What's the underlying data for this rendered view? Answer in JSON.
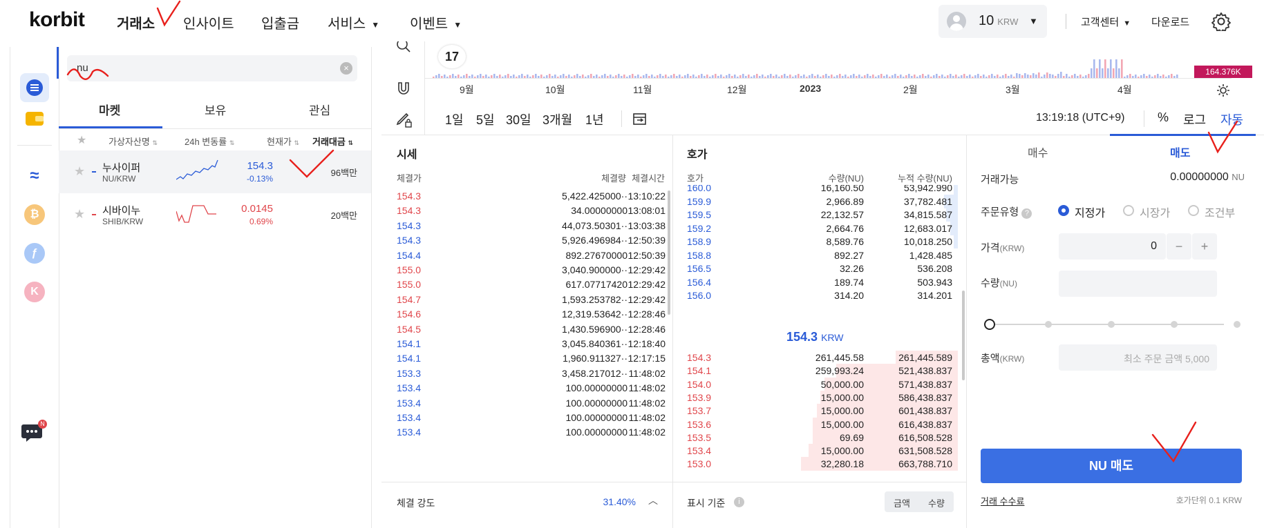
{
  "header": {
    "logo": "korbit",
    "nav": [
      {
        "label": "거래소"
      },
      {
        "label": "인사이트"
      },
      {
        "label": "입출금"
      },
      {
        "label": "서비스"
      },
      {
        "label": "이벤트"
      }
    ],
    "balance": {
      "amount": "10",
      "unit": "KRW"
    },
    "support": "고객센터",
    "download": "다운로드"
  },
  "market": {
    "search_value": "nu",
    "tabs": [
      "마켓",
      "보유",
      "관심"
    ],
    "columns": [
      "가상자산명",
      "24h 변동률",
      "현재가",
      "거래대금"
    ],
    "rows": [
      {
        "name": "누사이퍼",
        "pair": "NU/KRW",
        "price": "154.3",
        "change": "-0.13%",
        "volume": "96백만"
      },
      {
        "name": "시바이누",
        "pair": "SHIB/KRW",
        "price": "0.0145",
        "change": "0.69%",
        "volume": "20백만"
      }
    ]
  },
  "chart": {
    "months": [
      "9월",
      "10월",
      "11월",
      "12월",
      "2023",
      "2월",
      "3월",
      "4월"
    ],
    "price_tag": "164.376K",
    "periods": [
      "1일",
      "5일",
      "30일",
      "3개월",
      "1년"
    ],
    "time": "13:19:18 (UTC+9)",
    "scale": [
      "%",
      "로그",
      "자동"
    ]
  },
  "trades": {
    "title": "시세",
    "columns": [
      "체결가",
      "체결량",
      "체결시간"
    ],
    "rows": [
      {
        "price": "154.3",
        "qty": "5,422.425000··",
        "time": "13:10:22",
        "side": "sell"
      },
      {
        "price": "154.3",
        "qty": "34.00000000",
        "time": "13:08:01",
        "side": "sell"
      },
      {
        "price": "154.3",
        "qty": "44,073.50301··",
        "time": "13:03:38",
        "side": "buy"
      },
      {
        "price": "154.3",
        "qty": "5,926.496984··",
        "time": "12:50:39",
        "side": "buy"
      },
      {
        "price": "154.4",
        "qty": "892.27670000",
        "time": "12:50:39",
        "side": "buy"
      },
      {
        "price": "155.0",
        "qty": "3,040.900000··",
        "time": "12:29:42",
        "side": "sell"
      },
      {
        "price": "155.0",
        "qty": "617.07717420",
        "time": "12:29:42",
        "side": "sell"
      },
      {
        "price": "154.7",
        "qty": "1,593.253782··",
        "time": "12:29:42",
        "side": "sell"
      },
      {
        "price": "154.6",
        "qty": "12,319.53642··",
        "time": "12:28:46",
        "side": "sell"
      },
      {
        "price": "154.5",
        "qty": "1,430.596900··",
        "time": "12:28:46",
        "side": "sell"
      },
      {
        "price": "154.1",
        "qty": "3,045.840361··",
        "time": "12:18:40",
        "side": "buy"
      },
      {
        "price": "154.1",
        "qty": "1,960.911327··",
        "time": "12:17:15",
        "side": "buy"
      },
      {
        "price": "153.3",
        "qty": "3,458.217012··",
        "time": "11:48:02",
        "side": "buy"
      },
      {
        "price": "153.4",
        "qty": "100.00000000",
        "time": "11:48:02",
        "side": "buy"
      },
      {
        "price": "153.4",
        "qty": "100.00000000",
        "time": "11:48:02",
        "side": "buy"
      },
      {
        "price": "153.4",
        "qty": "100.00000000",
        "time": "11:48:02",
        "side": "buy"
      },
      {
        "price": "153.4",
        "qty": "100.00000000",
        "time": "11:48:02",
        "side": "buy"
      }
    ],
    "strength_label": "체결 강도",
    "strength_value": "31.40%"
  },
  "orderbook": {
    "title": "호가",
    "columns": [
      "호가",
      "수량(NU)",
      "누적 수량(NU)"
    ],
    "asks": [
      {
        "price": "160.0",
        "qty": "16,160.50",
        "cum": "53,942.990",
        "fill": 0.02
      },
      {
        "price": "159.9",
        "qty": "2,966.89",
        "cum": "37,782.481",
        "fill": 0.07
      },
      {
        "price": "159.5",
        "qty": "22,132.57",
        "cum": "34,815.587",
        "fill": 0.06
      },
      {
        "price": "159.2",
        "qty": "2,664.76",
        "cum": "12,683.017",
        "fill": 0.04
      },
      {
        "price": "158.9",
        "qty": "8,589.76",
        "cum": "10,018.250",
        "fill": 0.02
      },
      {
        "price": "158.8",
        "qty": "892.27",
        "cum": "1,428.485",
        "fill": 0.0
      },
      {
        "price": "156.5",
        "qty": "32.26",
        "cum": "536.208",
        "fill": 0.0
      },
      {
        "price": "156.4",
        "qty": "189.74",
        "cum": "503.943",
        "fill": 0.0
      },
      {
        "price": "156.0",
        "qty": "314.20",
        "cum": "314.201",
        "fill": 0.0
      }
    ],
    "current_price": "154.3",
    "current_unit": "KRW",
    "bids": [
      {
        "price": "154.3",
        "qty": "261,445.58",
        "cum": "261,445.589",
        "fill": 0.32
      },
      {
        "price": "154.1",
        "qty": "259,993.24",
        "cum": "521,438.837",
        "fill": 0.63
      },
      {
        "price": "154.0",
        "qty": "50,000.00",
        "cum": "571,438.837",
        "fill": 0.69
      },
      {
        "price": "153.9",
        "qty": "15,000.00",
        "cum": "586,438.837",
        "fill": 0.71
      },
      {
        "price": "153.7",
        "qty": "15,000.00",
        "cum": "601,438.837",
        "fill": 0.73
      },
      {
        "price": "153.6",
        "qty": "15,000.00",
        "cum": "616,438.837",
        "fill": 0.75
      },
      {
        "price": "153.5",
        "qty": "69.69",
        "cum": "616,508.528",
        "fill": 0.75
      },
      {
        "price": "153.4",
        "qty": "15,000.00",
        "cum": "631,508.528",
        "fill": 0.77
      },
      {
        "price": "153.0",
        "qty": "32,280.18",
        "cum": "663,788.710",
        "fill": 0.81
      }
    ],
    "display_label": "표시 기준",
    "toggle": [
      "금액",
      "수량"
    ]
  },
  "order": {
    "tabs": [
      "매수",
      "매도"
    ],
    "available_label": "거래가능",
    "available_value": "0.00000000",
    "available_unit": "NU",
    "type_label": "주문유형",
    "types": [
      "지정가",
      "시장가",
      "조건부"
    ],
    "price_label": "가격",
    "price_unit": "(KRW)",
    "price_value": "0",
    "qty_label": "수량",
    "qty_unit": "(NU)",
    "total_label": "총액",
    "total_unit": "(KRW)",
    "total_placeholder": "최소 주문 금액 5,000",
    "submit": "NU 매도",
    "fee_link": "거래 수수료",
    "tick_note": "호가단위 0.1 KRW"
  },
  "colors": {
    "accent": "#2a5bd7",
    "sell": "#e0454a",
    "annotation": "#e8201c"
  }
}
